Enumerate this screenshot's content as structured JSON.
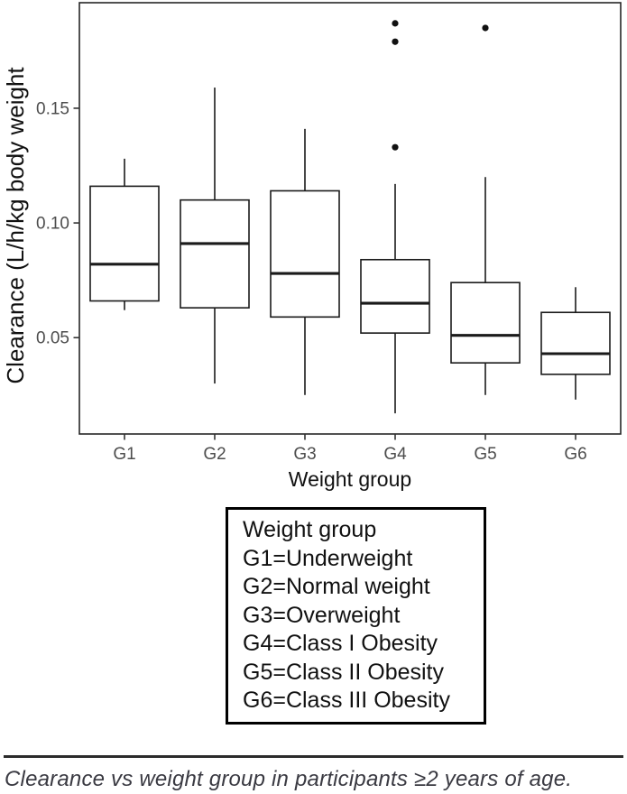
{
  "colors": {
    "line": "#1a1a1a",
    "panel_border": "#262626",
    "tick_text": "#4d4d4d",
    "axis_title": "#111111",
    "outlier": "#111111",
    "background": "#ffffff"
  },
  "chart_data": {
    "type": "boxplot",
    "title": "",
    "xlabel": "Weight group",
    "ylabel": "Clearance (L/h/kg body weight",
    "categories": [
      "G1",
      "G2",
      "G3",
      "G4",
      "G5",
      "G6"
    ],
    "ylim": [
      0.008,
      0.196
    ],
    "grid": false,
    "y_ticks": [
      {
        "value": 0.05,
        "label": "0.05"
      },
      {
        "value": 0.1,
        "label": "0.10"
      },
      {
        "value": 0.15,
        "label": "0.15"
      }
    ],
    "boxes": [
      {
        "group": "G1",
        "whisker_low": 0.062,
        "q1": 0.066,
        "median": 0.082,
        "q3": 0.116,
        "whisker_high": 0.128,
        "outliers": []
      },
      {
        "group": "G2",
        "whisker_low": 0.03,
        "q1": 0.063,
        "median": 0.091,
        "q3": 0.11,
        "whisker_high": 0.159,
        "outliers": []
      },
      {
        "group": "G3",
        "whisker_low": 0.025,
        "q1": 0.059,
        "median": 0.078,
        "q3": 0.114,
        "whisker_high": 0.141,
        "outliers": []
      },
      {
        "group": "G4",
        "whisker_low": 0.017,
        "q1": 0.052,
        "median": 0.065,
        "q3": 0.084,
        "whisker_high": 0.117,
        "outliers": [
          0.133,
          0.179,
          0.187
        ]
      },
      {
        "group": "G5",
        "whisker_low": 0.025,
        "q1": 0.039,
        "median": 0.051,
        "q3": 0.074,
        "whisker_high": 0.12,
        "outliers": [
          0.185
        ]
      },
      {
        "group": "G6",
        "whisker_low": 0.023,
        "q1": 0.034,
        "median": 0.043,
        "q3": 0.061,
        "whisker_high": 0.072,
        "outliers": []
      }
    ],
    "legend_position": "boxed-below-plot"
  },
  "legend": {
    "lines": [
      "Weight group",
      "G1=Underweight",
      "G2=Normal weight",
      "G3=Overweight",
      "G4=Class I Obesity",
      "G5=Class II Obesity",
      "G6=Class III Obesity"
    ]
  },
  "caption": {
    "text": "Clearance vs weight group in participants ≥2 years of age."
  }
}
